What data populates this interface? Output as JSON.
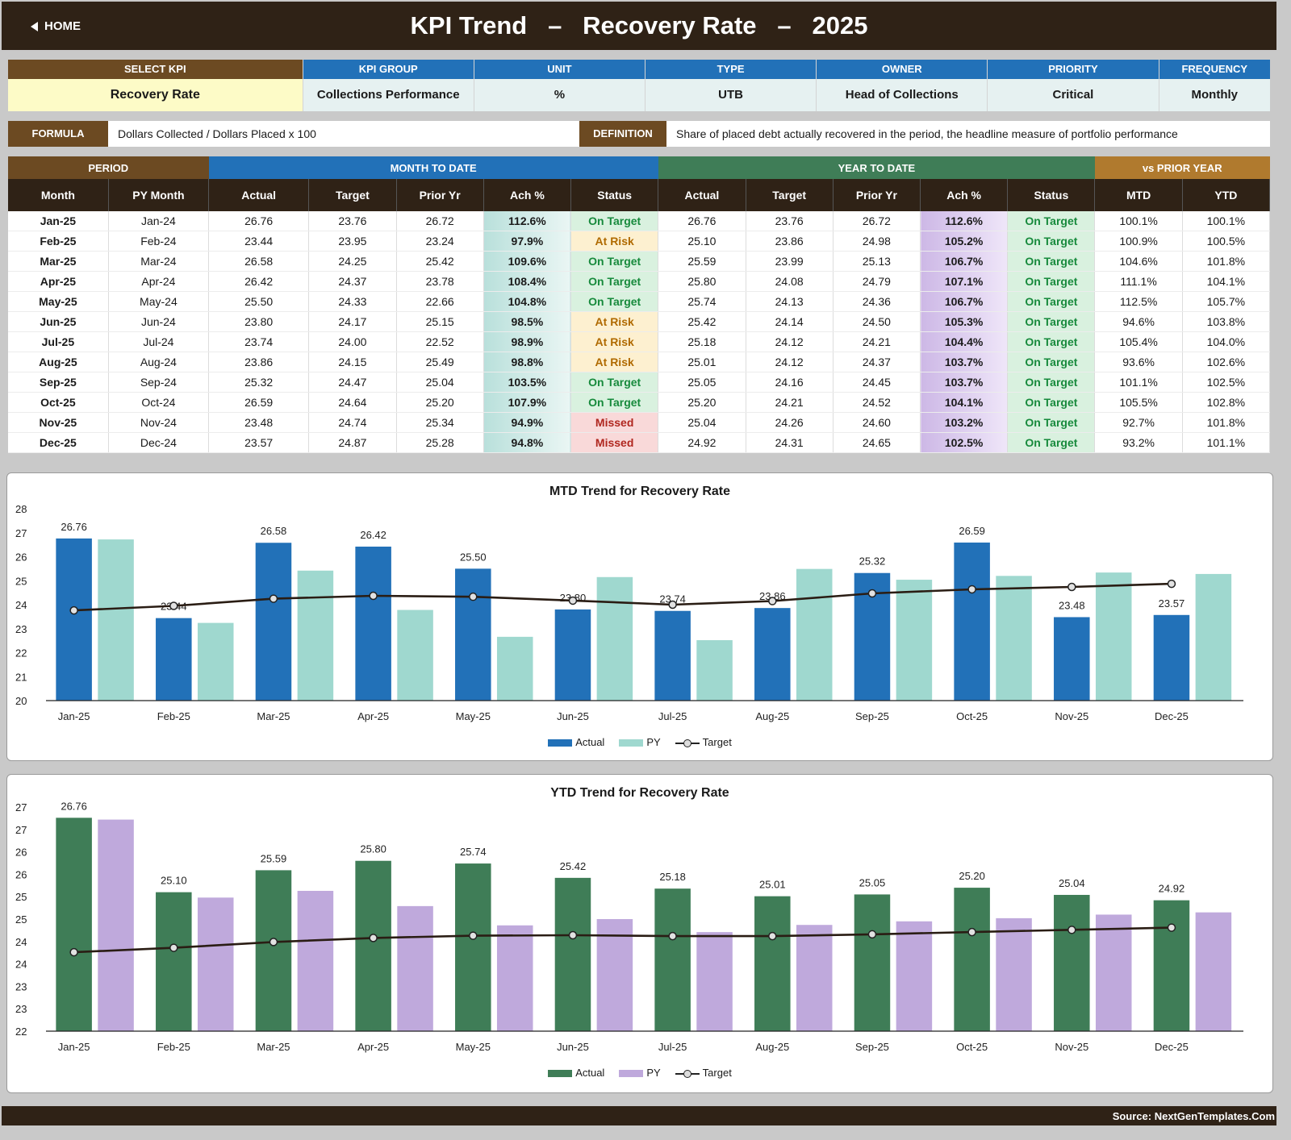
{
  "header": {
    "home_label": "HOME",
    "title": "KPI Trend   –   Recovery Rate   –   2025"
  },
  "kpi_info": [
    {
      "label": "SELECT KPI",
      "value": "Recovery Rate"
    },
    {
      "label": "KPI GROUP",
      "value": "Collections Performance"
    },
    {
      "label": "UNIT",
      "value": "%"
    },
    {
      "label": "TYPE",
      "value": "UTB"
    },
    {
      "label": "OWNER",
      "value": "Head of Collections"
    },
    {
      "label": "PRIORITY",
      "value": "Critical"
    },
    {
      "label": "FREQUENCY",
      "value": "Monthly"
    }
  ],
  "formula": {
    "label": "FORMULA",
    "text": "Dollars Collected / Dollars Placed x 100"
  },
  "definition": {
    "label": "DEFINITION",
    "text": "Share of placed debt actually recovered in the period, the headline measure of portfolio performance"
  },
  "table": {
    "groups": [
      "PERIOD",
      "MONTH TO DATE",
      "YEAR TO DATE",
      "vs PRIOR YEAR"
    ],
    "headers": [
      "Month",
      "PY Month",
      "Actual",
      "Target",
      "Prior Yr",
      "Ach %",
      "Status",
      "Actual",
      "Target",
      "Prior Yr",
      "Ach %",
      "Status",
      "MTD",
      "YTD"
    ],
    "rows": [
      [
        "Jan-25",
        "Jan-24",
        "26.76",
        "23.76",
        "26.72",
        "112.6%",
        "On Target",
        "26.76",
        "23.76",
        "26.72",
        "112.6%",
        "On Target",
        "100.1%",
        "100.1%"
      ],
      [
        "Feb-25",
        "Feb-24",
        "23.44",
        "23.95",
        "23.24",
        "97.9%",
        "At Risk",
        "25.10",
        "23.86",
        "24.98",
        "105.2%",
        "On Target",
        "100.9%",
        "100.5%"
      ],
      [
        "Mar-25",
        "Mar-24",
        "26.58",
        "24.25",
        "25.42",
        "109.6%",
        "On Target",
        "25.59",
        "23.99",
        "25.13",
        "106.7%",
        "On Target",
        "104.6%",
        "101.8%"
      ],
      [
        "Apr-25",
        "Apr-24",
        "26.42",
        "24.37",
        "23.78",
        "108.4%",
        "On Target",
        "25.80",
        "24.08",
        "24.79",
        "107.1%",
        "On Target",
        "111.1%",
        "104.1%"
      ],
      [
        "May-25",
        "May-24",
        "25.50",
        "24.33",
        "22.66",
        "104.8%",
        "On Target",
        "25.74",
        "24.13",
        "24.36",
        "106.7%",
        "On Target",
        "112.5%",
        "105.7%"
      ],
      [
        "Jun-25",
        "Jun-24",
        "23.80",
        "24.17",
        "25.15",
        "98.5%",
        "At Risk",
        "25.42",
        "24.14",
        "24.50",
        "105.3%",
        "On Target",
        "94.6%",
        "103.8%"
      ],
      [
        "Jul-25",
        "Jul-24",
        "23.74",
        "24.00",
        "22.52",
        "98.9%",
        "At Risk",
        "25.18",
        "24.12",
        "24.21",
        "104.4%",
        "On Target",
        "105.4%",
        "104.0%"
      ],
      [
        "Aug-25",
        "Aug-24",
        "23.86",
        "24.15",
        "25.49",
        "98.8%",
        "At Risk",
        "25.01",
        "24.12",
        "24.37",
        "103.7%",
        "On Target",
        "93.6%",
        "102.6%"
      ],
      [
        "Sep-25",
        "Sep-24",
        "25.32",
        "24.47",
        "25.04",
        "103.5%",
        "On Target",
        "25.05",
        "24.16",
        "24.45",
        "103.7%",
        "On Target",
        "101.1%",
        "102.5%"
      ],
      [
        "Oct-25",
        "Oct-24",
        "26.59",
        "24.64",
        "25.20",
        "107.9%",
        "On Target",
        "25.20",
        "24.21",
        "24.52",
        "104.1%",
        "On Target",
        "105.5%",
        "102.8%"
      ],
      [
        "Nov-25",
        "Nov-24",
        "23.48",
        "24.74",
        "25.34",
        "94.9%",
        "Missed",
        "25.04",
        "24.26",
        "24.60",
        "103.2%",
        "On Target",
        "92.7%",
        "101.8%"
      ],
      [
        "Dec-25",
        "Dec-24",
        "23.57",
        "24.87",
        "25.28",
        "94.8%",
        "Missed",
        "24.92",
        "24.31",
        "24.65",
        "102.5%",
        "On Target",
        "93.2%",
        "101.1%"
      ]
    ]
  },
  "colors": {
    "dark": "#2f2216",
    "brown": "#6c4a22",
    "blue": "#2271b8",
    "green": "#3f7d57",
    "gold": "#b07a2e",
    "mtd_actual": "#2271b8",
    "mtd_py": "#9fd8cf",
    "ytd_actual": "#3f7d57",
    "ytd_py": "#bfa9dc"
  },
  "chart_data": [
    {
      "type": "bar",
      "title": "MTD Trend for Recovery Rate",
      "categories": [
        "Jan-25",
        "Feb-25",
        "Mar-25",
        "Apr-25",
        "May-25",
        "Jun-25",
        "Jul-25",
        "Aug-25",
        "Sep-25",
        "Oct-25",
        "Nov-25",
        "Dec-25"
      ],
      "ylim": [
        20,
        28
      ],
      "yticks": [
        "20",
        "21",
        "22",
        "23",
        "24",
        "25",
        "26",
        "27",
        "28"
      ],
      "series": [
        {
          "name": "Actual",
          "kind": "bar",
          "values": [
            26.76,
            23.44,
            26.58,
            26.42,
            25.5,
            23.8,
            23.74,
            23.86,
            25.32,
            26.59,
            23.48,
            23.57
          ]
        },
        {
          "name": "PY",
          "kind": "bar",
          "values": [
            26.72,
            23.24,
            25.42,
            23.78,
            22.66,
            25.15,
            22.52,
            25.49,
            25.04,
            25.2,
            25.34,
            25.28
          ]
        },
        {
          "name": "Target",
          "kind": "line",
          "values": [
            23.76,
            23.95,
            24.25,
            24.37,
            24.33,
            24.17,
            24.0,
            24.15,
            24.47,
            24.64,
            24.74,
            24.87
          ]
        }
      ],
      "data_labels": [
        "26.76",
        "23.44",
        "26.58",
        "26.42",
        "25.50",
        "23.80",
        "23.74",
        "23.86",
        "25.32",
        "26.59",
        "23.48",
        "23.57"
      ],
      "legend": "bottom"
    },
    {
      "type": "bar",
      "title": "YTD Trend for Recovery Rate",
      "categories": [
        "Jan-25",
        "Feb-25",
        "Mar-25",
        "Apr-25",
        "May-25",
        "Jun-25",
        "Jul-25",
        "Aug-25",
        "Sep-25",
        "Oct-25",
        "Nov-25",
        "Dec-25"
      ],
      "ylim": [
        22,
        27
      ],
      "yticks": [
        "22",
        "23",
        "23",
        "24",
        "24",
        "25",
        "25",
        "26",
        "26",
        "27",
        "27"
      ],
      "series": [
        {
          "name": "Actual",
          "kind": "bar",
          "values": [
            26.76,
            25.1,
            25.59,
            25.8,
            25.74,
            25.42,
            25.18,
            25.01,
            25.05,
            25.2,
            25.04,
            24.92
          ]
        },
        {
          "name": "PY",
          "kind": "bar",
          "values": [
            26.72,
            24.98,
            25.13,
            24.79,
            24.36,
            24.5,
            24.21,
            24.37,
            24.45,
            24.52,
            24.6,
            24.65
          ]
        },
        {
          "name": "Target",
          "kind": "line",
          "values": [
            23.76,
            23.86,
            23.99,
            24.08,
            24.13,
            24.14,
            24.12,
            24.12,
            24.16,
            24.21,
            24.26,
            24.31
          ]
        }
      ],
      "data_labels": [
        "26.76",
        "25.10",
        "25.59",
        "25.80",
        "25.74",
        "25.42",
        "25.18",
        "25.01",
        "25.05",
        "25.20",
        "25.04",
        "24.92"
      ],
      "legend": "bottom"
    }
  ],
  "footer": {
    "source": "Source: NextGenTemplates.Com"
  }
}
